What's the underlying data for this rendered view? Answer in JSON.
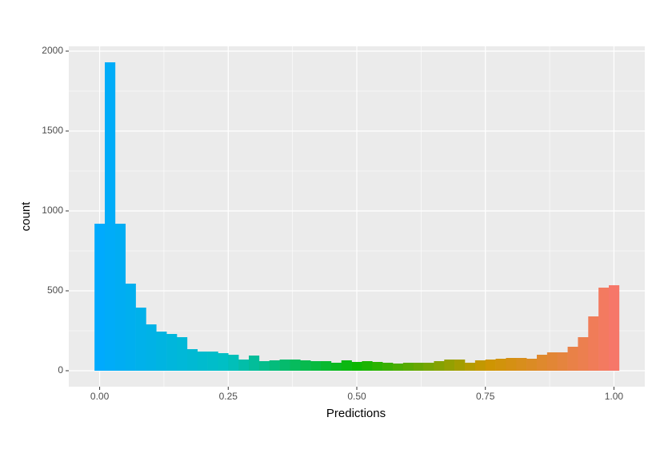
{
  "chart_data": {
    "type": "histogram",
    "xlabel": "Predictions",
    "ylabel": "count",
    "bins": [
      -0.01,
      0.01,
      0.03,
      0.05,
      0.07,
      0.09,
      0.11,
      0.13,
      0.15,
      0.17,
      0.19,
      0.21,
      0.23,
      0.25,
      0.27,
      0.29,
      0.31,
      0.33,
      0.35,
      0.37,
      0.39,
      0.41,
      0.43,
      0.45,
      0.47,
      0.49,
      0.51,
      0.53,
      0.55,
      0.57,
      0.59,
      0.61,
      0.63,
      0.65,
      0.67,
      0.69,
      0.71,
      0.73,
      0.75,
      0.77,
      0.79,
      0.81,
      0.83,
      0.85,
      0.87,
      0.89,
      0.91,
      0.93,
      0.95,
      0.97,
      0.99,
      1.01
    ],
    "values": [
      920,
      1930,
      920,
      545,
      395,
      290,
      245,
      230,
      210,
      135,
      120,
      120,
      110,
      100,
      70,
      95,
      60,
      65,
      70,
      70,
      65,
      60,
      60,
      50,
      65,
      55,
      60,
      55,
      50,
      45,
      50,
      50,
      50,
      60,
      70,
      70,
      50,
      65,
      70,
      75,
      80,
      80,
      75,
      100,
      115,
      115,
      150,
      210,
      340,
      520,
      535
    ],
    "color_scale": [
      "#00A9FF",
      "#00BFC4",
      "#0CB702",
      "#CD9600",
      "#F8766D"
    ],
    "xlim": [
      -0.06,
      1.06
    ],
    "ylim": [
      -100,
      2030
    ],
    "xticks": [
      {
        "value": 0,
        "label": "0.00"
      },
      {
        "value": 0.25,
        "label": "0.25"
      },
      {
        "value": 0.5,
        "label": "0.50"
      },
      {
        "value": 0.75,
        "label": "0.75"
      },
      {
        "value": 1,
        "label": "1.00"
      }
    ],
    "yticks": [
      0,
      500,
      1000,
      1500,
      2000
    ],
    "grid": true,
    "minor_grid": true
  }
}
